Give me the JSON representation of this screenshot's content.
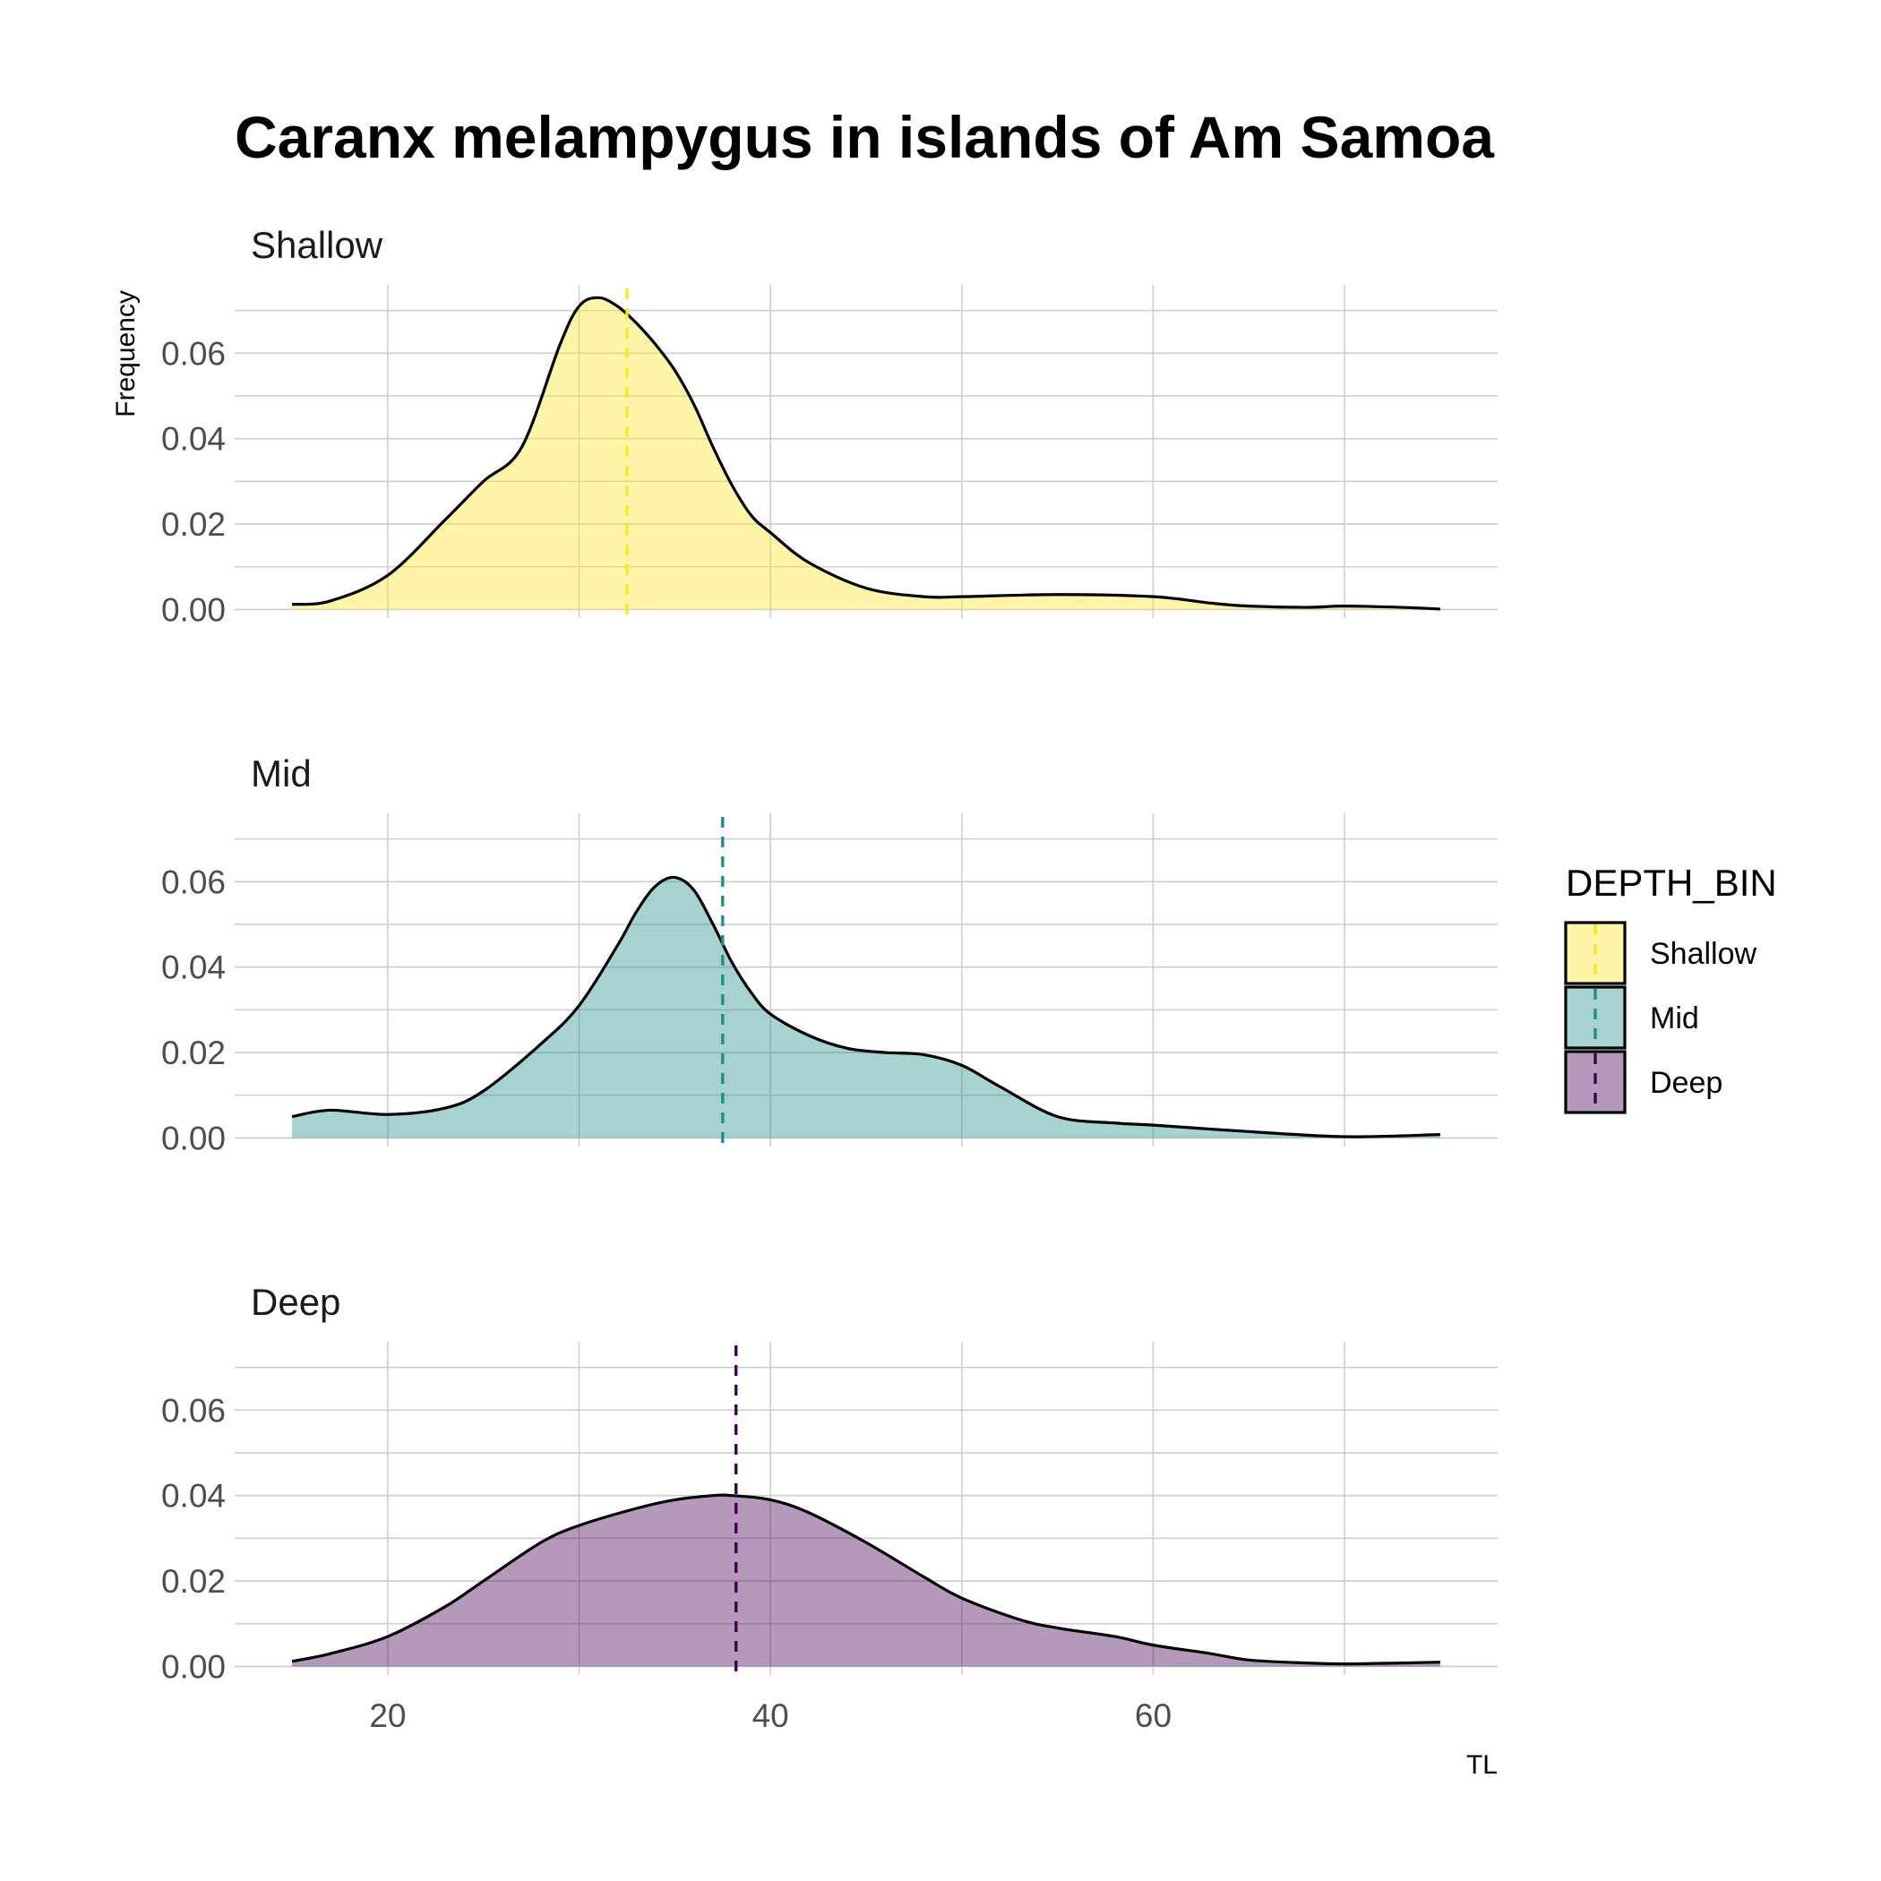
{
  "chart_data": {
    "type": "area",
    "title": "Caranx melampygus in islands of Am Samoa",
    "xlabel": "TL",
    "ylabel": "Frequency",
    "xlim": [
      12,
      78
    ],
    "ylim": [
      -0.002,
      0.076
    ],
    "x_ticks": [
      20,
      40,
      60
    ],
    "x_tick_labels": [
      "20",
      "40",
      "60"
    ],
    "y_ticks": [
      0.0,
      0.02,
      0.04,
      0.06
    ],
    "y_tick_labels": [
      "0.00",
      "0.02",
      "0.04",
      "0.06"
    ],
    "grid": true,
    "legend": {
      "title": "DEPTH_BIN",
      "position": "right",
      "entries": [
        "Shallow",
        "Mid",
        "Deep"
      ]
    },
    "panels": [
      {
        "name": "Shallow",
        "fill": "#FDE725",
        "mean_line": 32.5,
        "x": [
          15,
          17,
          20,
          23,
          25,
          27,
          29,
          30,
          31,
          32,
          33,
          34,
          35,
          36,
          37,
          38,
          39,
          40,
          42,
          45,
          48,
          50,
          55,
          60,
          63,
          65,
          68,
          70,
          73,
          75
        ],
        "y": [
          0.0012,
          0.002,
          0.008,
          0.021,
          0.03,
          0.038,
          0.062,
          0.071,
          0.073,
          0.071,
          0.067,
          0.062,
          0.056,
          0.048,
          0.038,
          0.029,
          0.022,
          0.018,
          0.011,
          0.005,
          0.003,
          0.003,
          0.0035,
          0.003,
          0.0015,
          0.0008,
          0.0005,
          0.0008,
          0.0005,
          0.0001
        ]
      },
      {
        "name": "Mid",
        "fill": "#21908C",
        "mean_line": 37.5,
        "x": [
          15,
          17,
          20,
          23,
          25,
          28,
          30,
          32,
          33,
          34,
          35,
          36,
          37,
          38,
          39,
          40,
          42,
          44,
          46,
          48,
          50,
          52,
          55,
          58,
          60,
          65,
          70,
          75
        ],
        "y": [
          0.005,
          0.0065,
          0.0055,
          0.007,
          0.011,
          0.022,
          0.031,
          0.045,
          0.053,
          0.059,
          0.061,
          0.058,
          0.05,
          0.041,
          0.034,
          0.029,
          0.024,
          0.021,
          0.02,
          0.0195,
          0.017,
          0.012,
          0.005,
          0.0035,
          0.003,
          0.0015,
          0.0003,
          0.0008
        ]
      },
      {
        "name": "Deep",
        "fill": "#440154",
        "mean_line": 38.2,
        "x": [
          15,
          17,
          20,
          23,
          25,
          28,
          30,
          33,
          35,
          37,
          38,
          40,
          42,
          45,
          48,
          50,
          53,
          55,
          58,
          60,
          63,
          65,
          68,
          70,
          73,
          75
        ],
        "y": [
          0.0012,
          0.003,
          0.007,
          0.014,
          0.02,
          0.029,
          0.033,
          0.037,
          0.039,
          0.04,
          0.04,
          0.039,
          0.036,
          0.029,
          0.021,
          0.016,
          0.011,
          0.009,
          0.007,
          0.005,
          0.003,
          0.0015,
          0.0008,
          0.0006,
          0.0008,
          0.001
        ]
      }
    ]
  }
}
